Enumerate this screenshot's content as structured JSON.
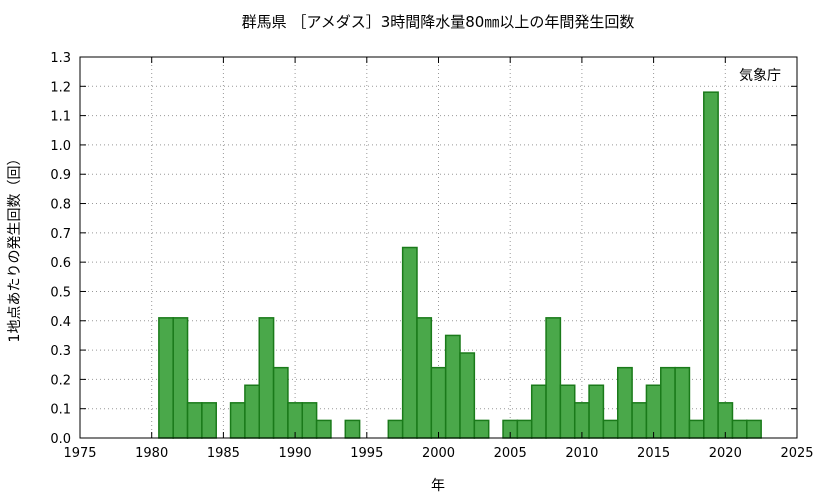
{
  "chart_data": {
    "type": "bar",
    "title": "群馬県 ［アメダス］3時間降水量80㎜以上の年間発生回数",
    "xlabel": "年",
    "ylabel": "1地点あたりの発生回数（回）",
    "credit": "気象庁",
    "xlim": [
      1975,
      2025
    ],
    "ylim": [
      0,
      1.3
    ],
    "x_ticks": [
      "1975",
      "1980",
      "1985",
      "1990",
      "1995",
      "2000",
      "2005",
      "2010",
      "2015",
      "2020",
      "2025"
    ],
    "y_ticks": [
      "0.0",
      "0.1",
      "0.2",
      "0.3",
      "0.4",
      "0.5",
      "0.6",
      "0.7",
      "0.8",
      "0.9",
      "1.0",
      "1.1",
      "1.2",
      "1.3"
    ],
    "grid": true,
    "bar_color": "#4aa84a",
    "bar_edge_color": "#1a7a1a",
    "x": [
      1976,
      1977,
      1978,
      1979,
      1980,
      1981,
      1982,
      1983,
      1984,
      1985,
      1986,
      1987,
      1988,
      1989,
      1990,
      1991,
      1992,
      1993,
      1994,
      1995,
      1996,
      1997,
      1998,
      1999,
      2000,
      2001,
      2002,
      2003,
      2004,
      2005,
      2006,
      2007,
      2008,
      2009,
      2010,
      2011,
      2012,
      2013,
      2014,
      2015,
      2016,
      2017,
      2018,
      2019,
      2020,
      2021,
      2022
    ],
    "values": [
      0,
      0,
      0,
      0,
      0,
      0.41,
      0.41,
      0.12,
      0.12,
      0,
      0.12,
      0.18,
      0.41,
      0.24,
      0.12,
      0.12,
      0.06,
      0,
      0.06,
      0,
      0,
      0.06,
      0.65,
      0.41,
      0.24,
      0.35,
      0.29,
      0.06,
      0,
      0.06,
      0.06,
      0.18,
      0.41,
      0.18,
      0.12,
      0.18,
      0.06,
      0.24,
      0.12,
      0.18,
      0.24,
      0.24,
      0.06,
      1.18,
      0.12,
      0.06,
      0.06
    ]
  }
}
